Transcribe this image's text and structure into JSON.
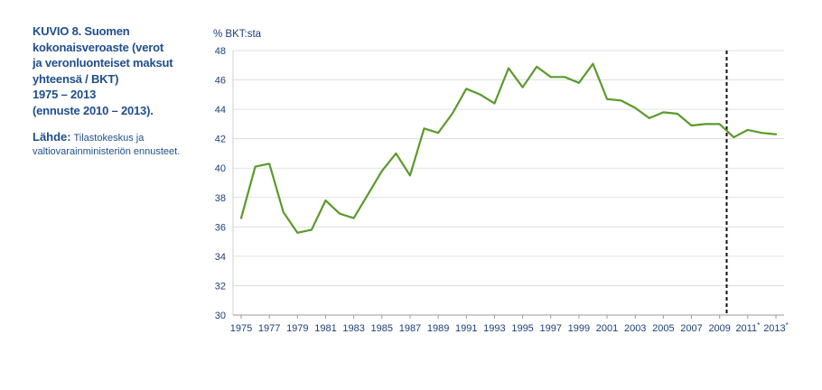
{
  "figure": {
    "title": "KUVIO 8. Suomen\nkokonaisveroaste (verot\nja veronluonteiset maksut\nyhteensä / BKT)\n1975 – 2013\n(ennuste 2010 – 2013).",
    "source_label": "Lähde:",
    "source_text": " Tilastokeskus ja valtiovarainministeriön ennusteet."
  },
  "chart_data": {
    "type": "line",
    "title": "",
    "ylabel": "% BKT:sta",
    "xlabel": "",
    "ylim": [
      30,
      48
    ],
    "yticks": [
      30,
      32,
      34,
      36,
      38,
      40,
      42,
      44,
      46,
      48
    ],
    "xlim": [
      1975,
      2013
    ],
    "xtick_labels": [
      {
        "year": 1975,
        "label": "1975"
      },
      {
        "year": 1977,
        "label": "1977"
      },
      {
        "year": 1979,
        "label": "1979"
      },
      {
        "year": 1981,
        "label": "1981"
      },
      {
        "year": 1983,
        "label": "1983"
      },
      {
        "year": 1985,
        "label": "1985"
      },
      {
        "year": 1987,
        "label": "1987"
      },
      {
        "year": 1989,
        "label": "1989"
      },
      {
        "year": 1991,
        "label": "1991"
      },
      {
        "year": 1993,
        "label": "1993"
      },
      {
        "year": 1995,
        "label": "1995"
      },
      {
        "year": 1997,
        "label": "1997"
      },
      {
        "year": 1999,
        "label": "1999"
      },
      {
        "year": 2001,
        "label": "2001"
      },
      {
        "year": 2003,
        "label": "2003"
      },
      {
        "year": 2005,
        "label": "2005"
      },
      {
        "year": 2007,
        "label": "2007"
      },
      {
        "year": 2009,
        "label": "2009"
      },
      {
        "year": 2011,
        "label": "2011*"
      },
      {
        "year": 2013,
        "label": "2013*"
      }
    ],
    "grid": true,
    "forecast_divider_year": 2009.5,
    "line_color": "#5a9a2b",
    "text_color": "#1f4e8c",
    "series": [
      {
        "x": [
          1975,
          1976,
          1977,
          1978,
          1979,
          1980,
          1981,
          1982,
          1983,
          1984,
          1985,
          1986,
          1987,
          1988,
          1989,
          1990,
          1991,
          1992,
          1993,
          1994,
          1995,
          1996,
          1997,
          1998,
          1999,
          2000,
          2001,
          2002,
          2003,
          2004,
          2005,
          2006,
          2007,
          2008,
          2009,
          2010,
          2011,
          2012,
          2013
        ],
        "values": [
          36.6,
          40.1,
          40.3,
          37.0,
          35.6,
          35.8,
          37.8,
          36.9,
          36.6,
          38.2,
          39.8,
          41.0,
          39.5,
          42.7,
          42.4,
          43.7,
          45.4,
          45.0,
          44.4,
          46.8,
          45.5,
          46.9,
          46.2,
          46.2,
          45.8,
          47.1,
          44.7,
          44.6,
          44.1,
          43.4,
          43.8,
          43.7,
          42.9,
          43.0,
          43.0,
          42.1,
          42.6,
          42.4,
          42.3
        ]
      }
    ]
  }
}
